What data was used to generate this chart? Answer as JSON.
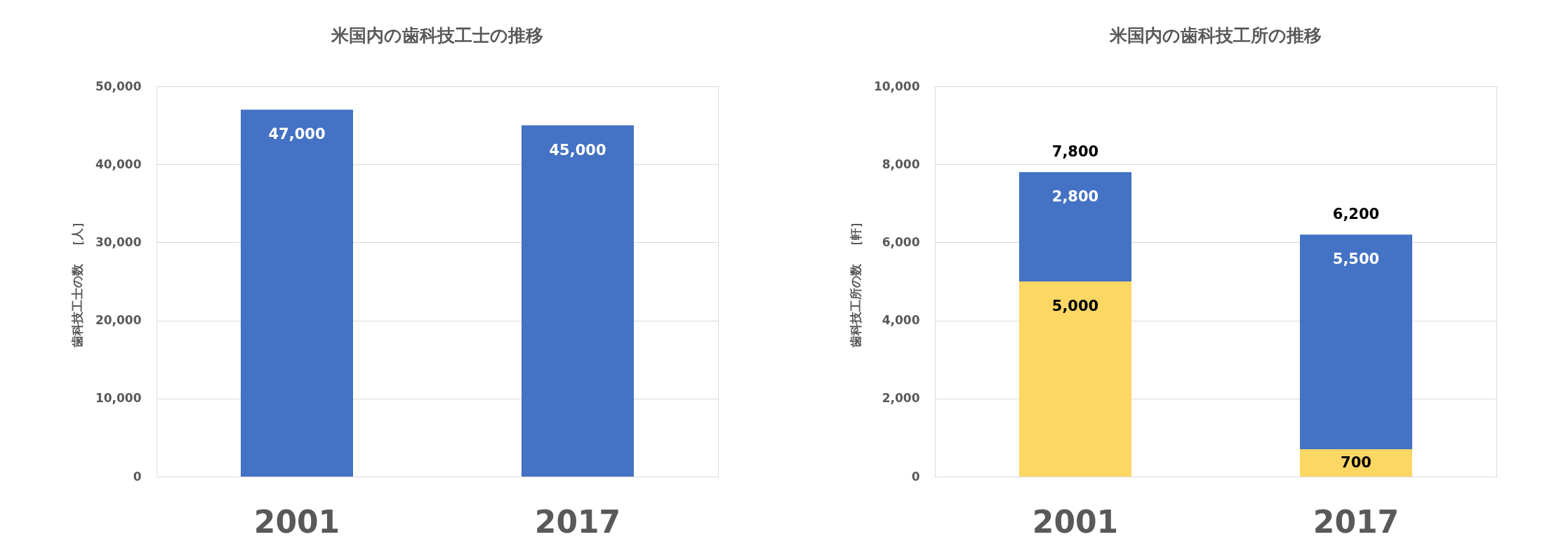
{
  "chart_data": [
    {
      "type": "bar",
      "title": "米国内の歯科技工士の推移",
      "ylabel": "歯科技工士の数　［人］",
      "categories": [
        "2001",
        "2017"
      ],
      "values": [
        47000,
        45000
      ],
      "value_labels": [
        "47,000",
        "45,000"
      ],
      "color": "#4472c4",
      "ylim": [
        0,
        50000
      ],
      "yticks": [
        0,
        {
          "value": 10000,
          "label": "10,000"
        },
        {
          "value": 20000,
          "label": "20,000"
        },
        {
          "value": 30000,
          "label": "30,000"
        },
        {
          "value": 40000,
          "label": "40,000"
        },
        {
          "value": 50000,
          "label": "50,000"
        }
      ],
      "grid": "y"
    },
    {
      "type": "bar",
      "title": "米国内の歯科技工所の推移",
      "ylabel": "歯科技工所の数　［軒］",
      "categories": [
        "2001",
        "2017"
      ],
      "series": [
        {
          "color": "#fdd764",
          "values": [
            5000,
            700
          ],
          "value_labels": [
            "5,000",
            "700"
          ]
        },
        {
          "color": "#4472c4",
          "values": [
            2800,
            5500
          ],
          "value_labels": [
            "2,800",
            "5,500"
          ]
        }
      ],
      "stacked": true,
      "ylim": [
        0,
        10000
      ],
      "yticks": [
        0,
        {
          "value": 2000,
          "label": "2,000"
        },
        {
          "value": 4000,
          "label": "4,000"
        },
        {
          "value": 6000,
          "label": "6,000"
        },
        {
          "value": 8000,
          "label": "8,000"
        },
        {
          "value": 10000,
          "label": "10,000"
        }
      ],
      "grid": "y",
      "totals": [
        "7,800",
        "6,200"
      ]
    }
  ]
}
